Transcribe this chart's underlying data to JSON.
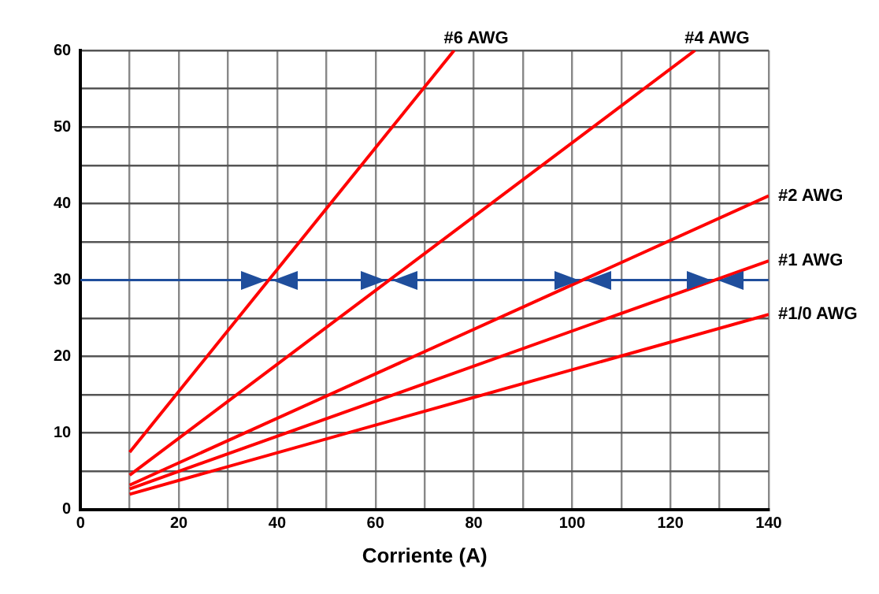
{
  "chart_data": {
    "type": "line",
    "xlabel": "Corriente (A)",
    "xlim": [
      0,
      140
    ],
    "ylim": [
      0,
      60
    ],
    "xticks": [
      0,
      {
        "value": 10,
        "label": null
      },
      20,
      {
        "value": 30,
        "label": null
      },
      40,
      {
        "value": 50,
        "label": null
      },
      60,
      {
        "value": 70,
        "label": null
      },
      80,
      {
        "value": 90,
        "label": null
      },
      100,
      {
        "value": 110,
        "label": null
      },
      120,
      {
        "value": 130,
        "label": null
      },
      140
    ],
    "yticks": [
      0,
      {
        "value": 5,
        "label": null
      },
      10,
      {
        "value": 15,
        "label": null
      },
      20,
      {
        "value": 25,
        "label": null
      },
      30,
      {
        "value": 35,
        "label": null
      },
      40,
      {
        "value": 45,
        "label": null
      },
      50,
      {
        "value": 55,
        "label": null
      },
      60
    ],
    "grid": true,
    "legend": false,
    "marker": "none",
    "line_style": "solid",
    "series": [
      {
        "name": "#6 AWG",
        "color": "#ff0000",
        "x": [
          10,
          76
        ],
        "values": [
          7.5,
          60
        ]
      },
      {
        "name": "#4 AWG",
        "color": "#ff0000",
        "x": [
          10,
          125
        ],
        "values": [
          4.5,
          60
        ]
      },
      {
        "name": "#2 AWG",
        "color": "#ff0000",
        "x": [
          10,
          140
        ],
        "values": [
          3.2,
          41
        ]
      },
      {
        "name": "#1 AWG",
        "color": "#ff0000",
        "x": [
          10,
          140
        ],
        "values": [
          2.7,
          32.5
        ]
      },
      {
        "name": "#1/0 AWG",
        "color": "#ff0000",
        "x": [
          10,
          140
        ],
        "values": [
          2,
          25.5
        ]
      }
    ],
    "ref_lines": [
      {
        "axis": "y",
        "value": 30,
        "label": null,
        "color": "#1f4e9c"
      }
    ]
  }
}
